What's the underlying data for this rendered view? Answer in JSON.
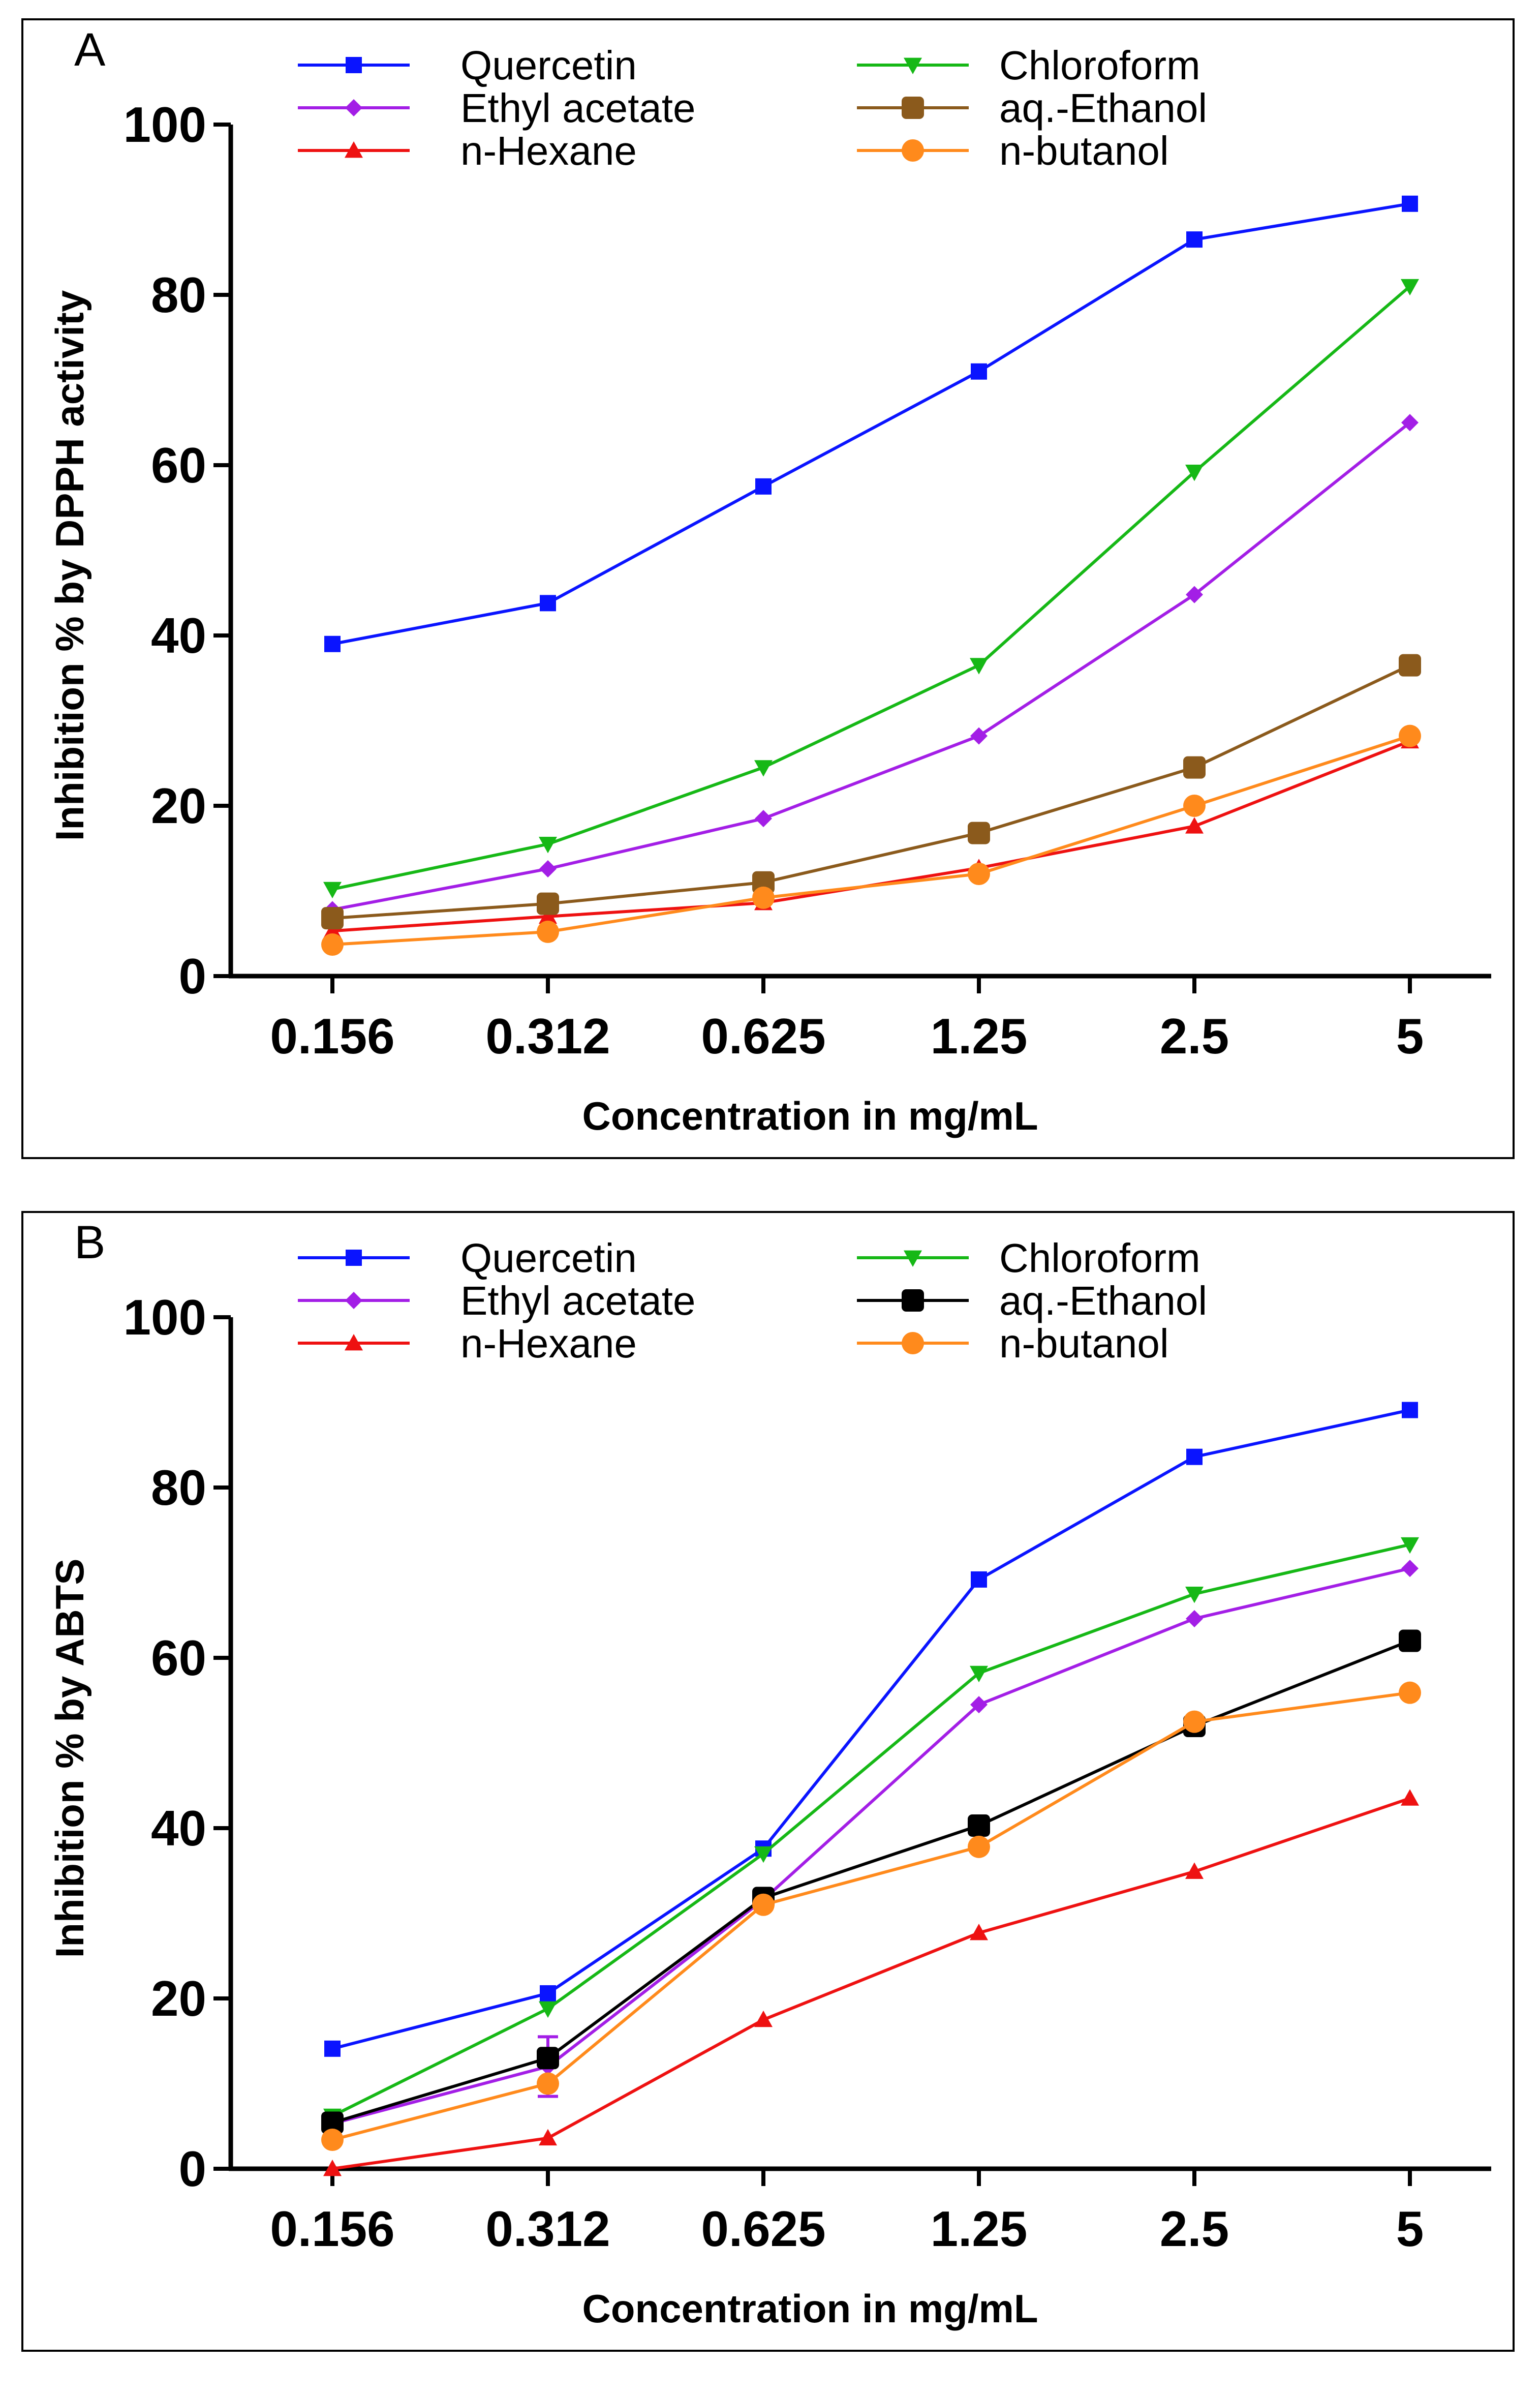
{
  "chart_data": [
    {
      "panel": "A",
      "type": "line",
      "title": "",
      "xlabel": "Concentration in mg/mL",
      "ylabel": "Inhibition % by DPPH activity",
      "categories": [
        "0.156",
        "0.312",
        "0.625",
        "1.25",
        "2.5",
        "5"
      ],
      "ylim": [
        0,
        100
      ],
      "yticks": [
        "0",
        "20",
        "40",
        "60",
        "80",
        "100"
      ],
      "legend_position": "top",
      "series": [
        {
          "name": "Quercetin",
          "color": "#0a14ff",
          "marker": "square",
          "values": [
            39,
            43.8,
            57.5,
            71,
            86.5,
            90.7
          ]
        },
        {
          "name": "Ethyl acetate",
          "color": "#a31ee6",
          "marker": "diamond",
          "values": [
            7.8,
            12.6,
            18.5,
            28.2,
            44.8,
            65
          ]
        },
        {
          "name": "n-Hexane",
          "color": "#ee1111",
          "marker": "triangle-up",
          "values": [
            5.3,
            7.0,
            8.6,
            12.7,
            17.6,
            27.6
          ]
        },
        {
          "name": "Chloroform",
          "color": "#16b816",
          "marker": "triangle-down",
          "values": [
            10.2,
            15.5,
            24.5,
            36.5,
            59.2,
            81
          ]
        },
        {
          "name": "aq.-Ethanol",
          "color": "#8b5a1c",
          "marker": "big-square",
          "values": [
            6.8,
            8.5,
            11.0,
            16.8,
            24.5,
            36.5
          ]
        },
        {
          "name": "n-butanol",
          "color": "#ff8a1c",
          "marker": "circle",
          "values": [
            3.7,
            5.2,
            9.2,
            12.0,
            20.0,
            28.2
          ]
        }
      ]
    },
    {
      "panel": "B",
      "type": "line",
      "title": "",
      "xlabel": "Concentration in mg/mL",
      "ylabel": "Inhibition % by ABTS",
      "categories": [
        "0.156",
        "0.312",
        "0.625",
        "1.25",
        "2.5",
        "5"
      ],
      "ylim": [
        0,
        100
      ],
      "yticks": [
        "0",
        "20",
        "40",
        "60",
        "80",
        "100"
      ],
      "legend_position": "top",
      "series": [
        {
          "name": "Quercetin",
          "color": "#0a14ff",
          "marker": "square",
          "values": [
            14.1,
            20.6,
            37.6,
            69.2,
            83.6,
            89.1
          ]
        },
        {
          "name": "Ethyl acetate",
          "color": "#a31ee6",
          "marker": "diamond",
          "values": [
            5.3,
            12.0,
            31.6,
            54.5,
            64.6,
            70.5
          ],
          "errors": [
            0,
            3.5,
            0,
            0,
            0,
            0
          ]
        },
        {
          "name": "n-Hexane",
          "color": "#ee1111",
          "marker": "triangle-up",
          "values": [
            0,
            3.6,
            17.5,
            27.7,
            34.9,
            43.5
          ]
        },
        {
          "name": "Chloroform",
          "color": "#16b816",
          "marker": "triangle-down",
          "values": [
            6.2,
            18.8,
            37.0,
            58.2,
            67.5,
            73.3
          ]
        },
        {
          "name": "aq.-Ethanol",
          "color": "#000000",
          "marker": "big-square",
          "values": [
            5.4,
            13.0,
            31.8,
            40.3,
            52.0,
            62.0
          ]
        },
        {
          "name": "n-butanol",
          "color": "#ff8a1c",
          "marker": "circle",
          "values": [
            3.4,
            10.0,
            31.0,
            37.8,
            52.5,
            55.9
          ]
        }
      ]
    }
  ]
}
